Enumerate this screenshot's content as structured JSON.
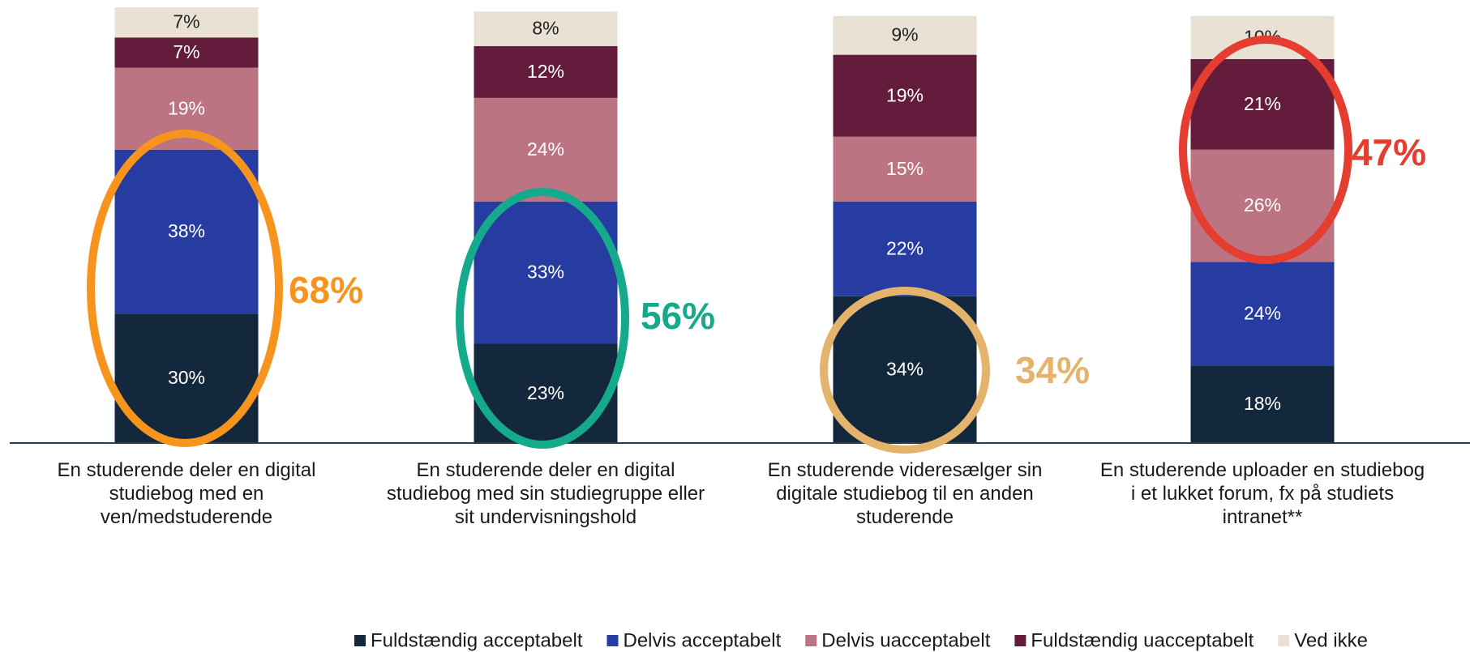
{
  "chart_data": {
    "type": "stacked-bar",
    "categories": [
      "En studerende deler en digital\nstudiebog med en\nven/medstuderende",
      "En studerende deler en digital\nstudiebog med sin studiegruppe eller\nsit undervisningshold",
      "En studerende videresælger sin\ndigitale studiebog til en anden\nstuderende",
      "En studerende uploader en studiebog\ni et lukket forum, fx på studiets\nintranet**"
    ],
    "series": [
      {
        "name": "Fuldstændig acceptabelt",
        "color": "#13283c",
        "values": [
          30,
          23,
          34,
          18
        ],
        "value_labels": [
          "30%",
          "23%",
          "34%",
          "18%"
        ]
      },
      {
        "name": "Delvis acceptabelt",
        "color": "#263ca0",
        "values": [
          38,
          33,
          22,
          24
        ],
        "value_labels": [
          "38%",
          "33%",
          "22%",
          "24%"
        ]
      },
      {
        "name": "Delvis uacceptabelt",
        "color": "#bc7483",
        "values": [
          19,
          24,
          15,
          26
        ],
        "value_labels": [
          "19%",
          "24%",
          "15%",
          "26%"
        ]
      },
      {
        "name": "Fuldstændig uacceptabelt",
        "color": "#631c3b",
        "values": [
          7,
          12,
          19,
          21
        ],
        "value_labels": [
          "7%",
          "12%",
          "19%",
          "21%"
        ]
      },
      {
        "name": "Ved ikke",
        "color": "#e9e1d4",
        "values": [
          7,
          8,
          9,
          10
        ],
        "value_labels": [
          "7%",
          "8%",
          "9%",
          "10%"
        ]
      }
    ],
    "annotations": [
      {
        "text": "68%",
        "color": "#f7941d"
      },
      {
        "text": "56%",
        "color": "#15aa8c"
      },
      {
        "text": "34%",
        "color": "#e4b36c"
      },
      {
        "text": "47%",
        "color": "#e53d30"
      }
    ]
  }
}
